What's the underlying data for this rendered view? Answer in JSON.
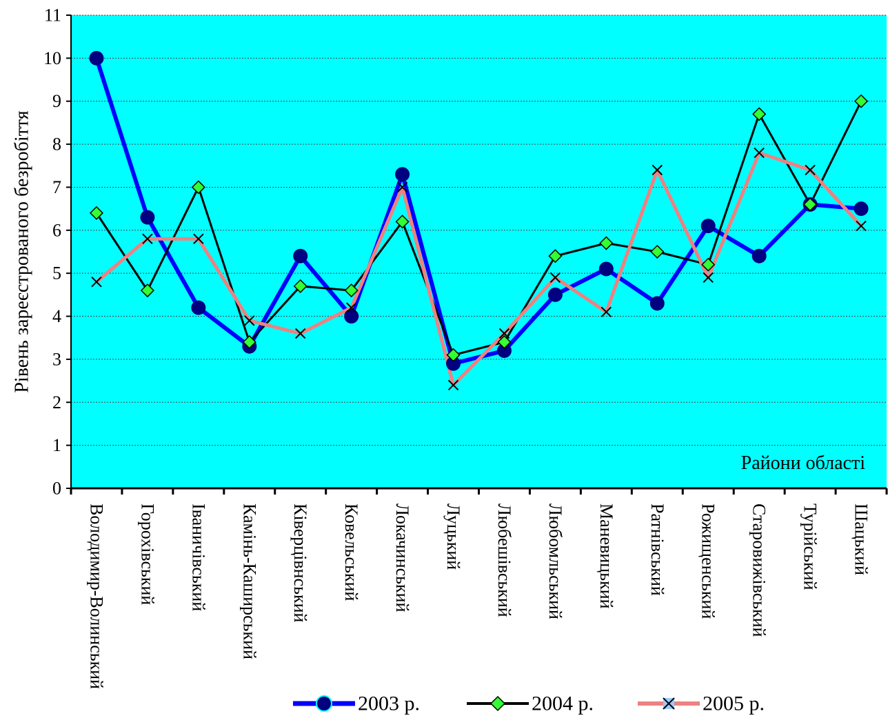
{
  "chart_data": {
    "type": "line",
    "title": "",
    "ylabel": "Рівень зареєстрованого безробіття",
    "xlabel": "Райони області",
    "ylim": [
      0,
      11
    ],
    "yticks": [
      0,
      1,
      2,
      3,
      4,
      5,
      6,
      7,
      8,
      9,
      10,
      11
    ],
    "grid": true,
    "legend": "bottom",
    "plot_background": "#00FFFF",
    "categories": [
      "Володимир-Волинський",
      "Горохівський",
      "Іваничівський",
      "Камінь-Каширський",
      "Ківерцівнський",
      "Ковельський",
      "Локачинський",
      "Луцький",
      "Любешівський",
      "Любомльський",
      "Маневицький",
      "Ратнівський",
      "Рожищенський",
      "Старовижівський",
      "Турійський",
      "Шацький"
    ],
    "series": [
      {
        "name": "2003 р.",
        "color": "#0000FF",
        "marker": "circle",
        "marker_color": "#000080",
        "values": [
          10.0,
          6.3,
          4.2,
          3.3,
          5.4,
          4.0,
          7.3,
          2.9,
          3.2,
          4.5,
          5.1,
          4.3,
          6.1,
          5.4,
          6.6,
          6.5
        ]
      },
      {
        "name": "2004 р.",
        "color": "#000000",
        "marker": "diamond",
        "marker_color": "#33FF33",
        "values": [
          6.4,
          4.6,
          7.0,
          3.4,
          4.7,
          4.6,
          6.2,
          3.1,
          3.4,
          5.4,
          5.7,
          5.5,
          5.2,
          8.7,
          6.6,
          9.0
        ]
      },
      {
        "name": "2005 р.",
        "color": "#F08080",
        "marker": "x",
        "marker_color": "#000000",
        "values": [
          4.8,
          5.8,
          5.8,
          3.9,
          3.6,
          4.2,
          7.0,
          2.4,
          3.6,
          4.9,
          4.1,
          7.4,
          4.9,
          7.8,
          7.4,
          6.1
        ]
      }
    ]
  }
}
